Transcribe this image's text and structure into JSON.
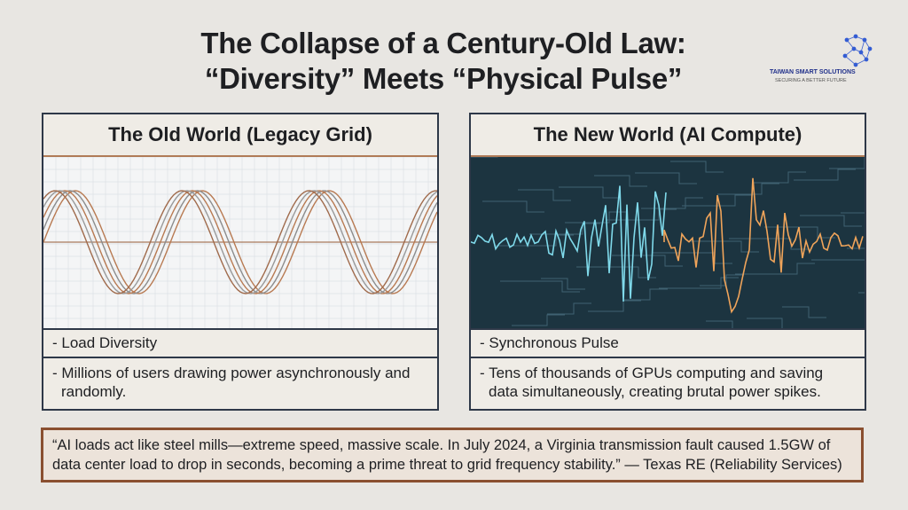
{
  "header": {
    "title_line1": "The Collapse of a Century-Old Law:",
    "title_line2": "“Diversity” Meets “Physical Pulse”"
  },
  "logo": {
    "name": "TAIWAN SMART SOLUTIONS",
    "tagline": "SECURING A BETTER FUTURE"
  },
  "panels": [
    {
      "title": "The Old World (Legacy Grid)",
      "label": "- Load Diversity",
      "description": "- Millions of users drawing power asynchronously and randomly."
    },
    {
      "title": "The New World (AI Compute)",
      "label": "- Synchronous Pulse",
      "description": "- Tens of thousands of GPUs computing and saving data simultaneously, creating brutal power spikes."
    }
  ],
  "quote": "“AI loads act like steel mills—extreme speed, massive scale. In July 2024, a Virginia transmission fault caused 1.5GW of data center load to drop in seconds, becoming a prime threat to grid frequency stability.” — Texas RE (Reliability Services)"
}
